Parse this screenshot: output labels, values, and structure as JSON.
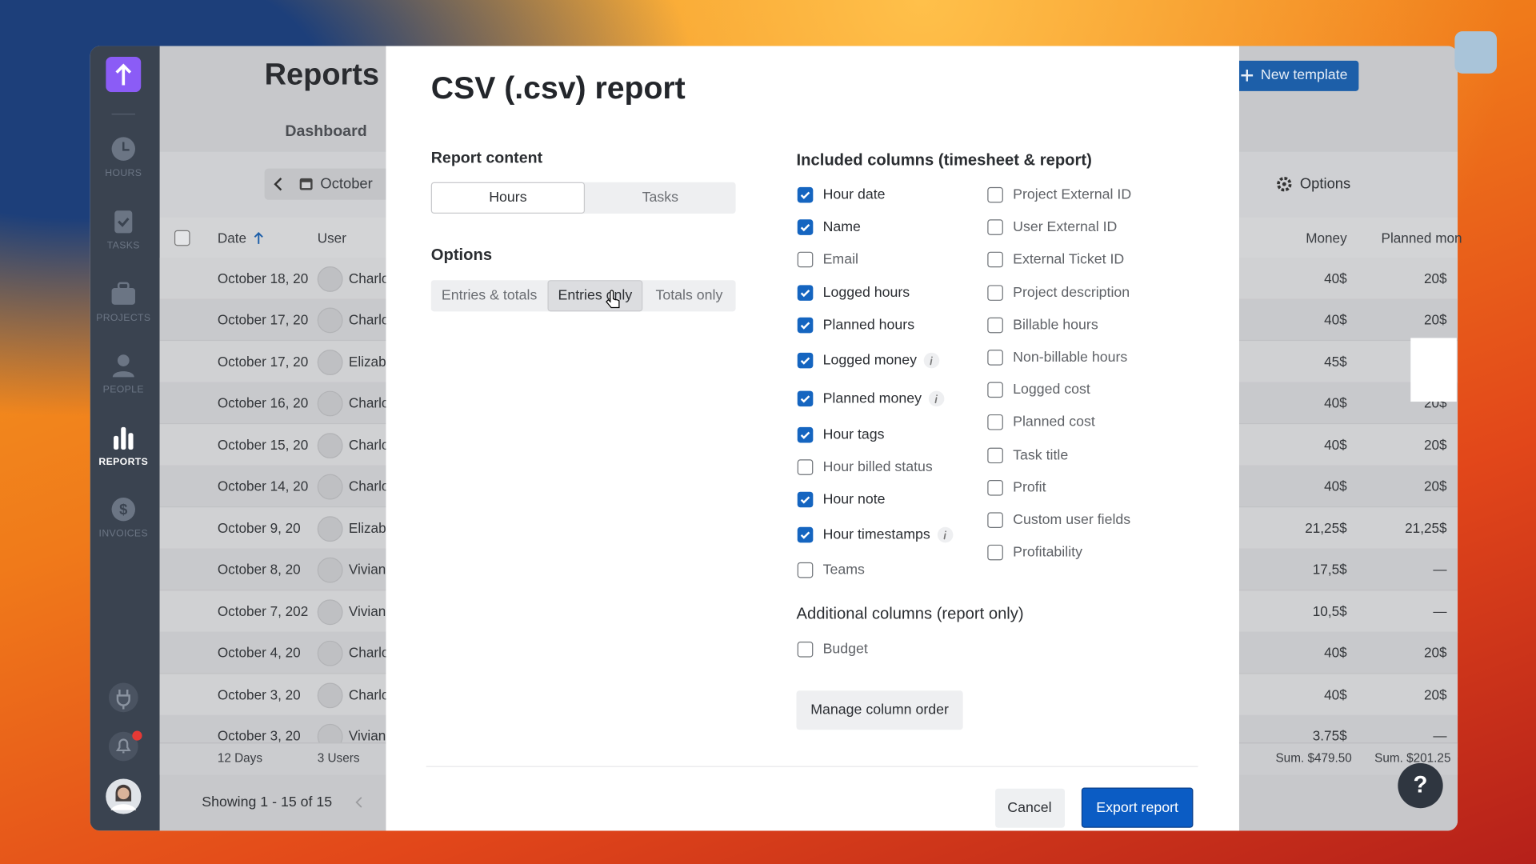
{
  "sidebar": {
    "nav": [
      "HOURS",
      "TASKS",
      "PROJECTS",
      "PEOPLE",
      "REPORTS",
      "INVOICES"
    ],
    "active": 4
  },
  "page": {
    "title": "Reports",
    "tab": "Dashboard",
    "period": "October",
    "new_template": "New template",
    "options": "Options",
    "table": {
      "headers": [
        "Date",
        "User",
        "Money",
        "Planned mon"
      ],
      "rows": [
        [
          "October 18, 20",
          "Charlo",
          "40$",
          "20$"
        ],
        [
          "October 17, 20",
          "Charlo",
          "40$",
          "20$"
        ],
        [
          "October 17, 20",
          "Elizab",
          "45$",
          null
        ],
        [
          "October 16, 20",
          "Charlo",
          "40$",
          "20$"
        ],
        [
          "October 15, 20",
          "Charlo",
          "40$",
          "20$"
        ],
        [
          "October 14, 20",
          "Charlo",
          "40$",
          "20$"
        ],
        [
          "October 9, 20",
          "Elizab",
          "21,25$",
          "21,25$"
        ],
        [
          "October 8, 20",
          "Vivian",
          "17,5$",
          "—"
        ],
        [
          "October 7, 202",
          "Vivian",
          "10,5$",
          "—"
        ],
        [
          "October 4, 20",
          "Charlo",
          "40$",
          "20$"
        ],
        [
          "October 3, 20",
          "Charlo",
          "40$",
          "20$"
        ],
        [
          "October 3, 20",
          "Vivian",
          "3.75$",
          "—"
        ]
      ],
      "footer": [
        "12 Days",
        "3 Users",
        "Sum. $479.50",
        "Sum. $201.25"
      ]
    },
    "pagination": "Showing 1 - 15 of 15",
    "help": "?"
  },
  "modal": {
    "title": "CSV (.csv) report",
    "report_content": {
      "label": "Report content",
      "choices": [
        "Hours",
        "Tasks"
      ],
      "selected": 0
    },
    "options": {
      "label": "Options",
      "choices": [
        "Entries & totals",
        "Entries only",
        "Totals only"
      ],
      "selected": 1
    },
    "included": {
      "label": "Included columns (timesheet & report)",
      "left": [
        {
          "label": "Hour date",
          "checked": true,
          "info": false
        },
        {
          "label": "Name",
          "checked": true,
          "info": false
        },
        {
          "label": "Email",
          "checked": false,
          "info": false
        },
        {
          "label": "Logged hours",
          "checked": true,
          "info": false
        },
        {
          "label": "Planned hours",
          "checked": true,
          "info": false
        },
        {
          "label": "Logged money",
          "checked": true,
          "info": true
        },
        {
          "label": "Planned money",
          "checked": true,
          "info": true
        },
        {
          "label": "Hour tags",
          "checked": true,
          "info": false
        },
        {
          "label": "Hour billed status",
          "checked": false,
          "info": false
        },
        {
          "label": "Hour note",
          "checked": true,
          "info": false
        },
        {
          "label": "Hour timestamps",
          "checked": true,
          "info": true
        },
        {
          "label": "Teams",
          "checked": false,
          "info": false
        }
      ],
      "right": [
        {
          "label": "Project External ID",
          "checked": false,
          "info": false
        },
        {
          "label": "User External ID",
          "checked": false,
          "info": false
        },
        {
          "label": "External Ticket ID",
          "checked": false,
          "info": false
        },
        {
          "label": "Project description",
          "checked": false,
          "info": false
        },
        {
          "label": "Billable hours",
          "checked": false,
          "info": false
        },
        {
          "label": "Non-billable hours",
          "checked": false,
          "info": false
        },
        {
          "label": "Logged cost",
          "checked": false,
          "info": false
        },
        {
          "label": "Planned cost",
          "checked": false,
          "info": false
        },
        {
          "label": "Task title",
          "checked": false,
          "info": false
        },
        {
          "label": "Profit",
          "checked": false,
          "info": false
        },
        {
          "label": "Custom user fields",
          "checked": false,
          "info": false
        },
        {
          "label": "Profitability",
          "checked": false,
          "info": false
        }
      ]
    },
    "additional": {
      "label": "Additional columns (report only)",
      "columns": [
        {
          "label": "Budget",
          "checked": false,
          "info": false
        }
      ]
    },
    "manage": "Manage column order",
    "cancel": "Cancel",
    "export": "Export report"
  }
}
